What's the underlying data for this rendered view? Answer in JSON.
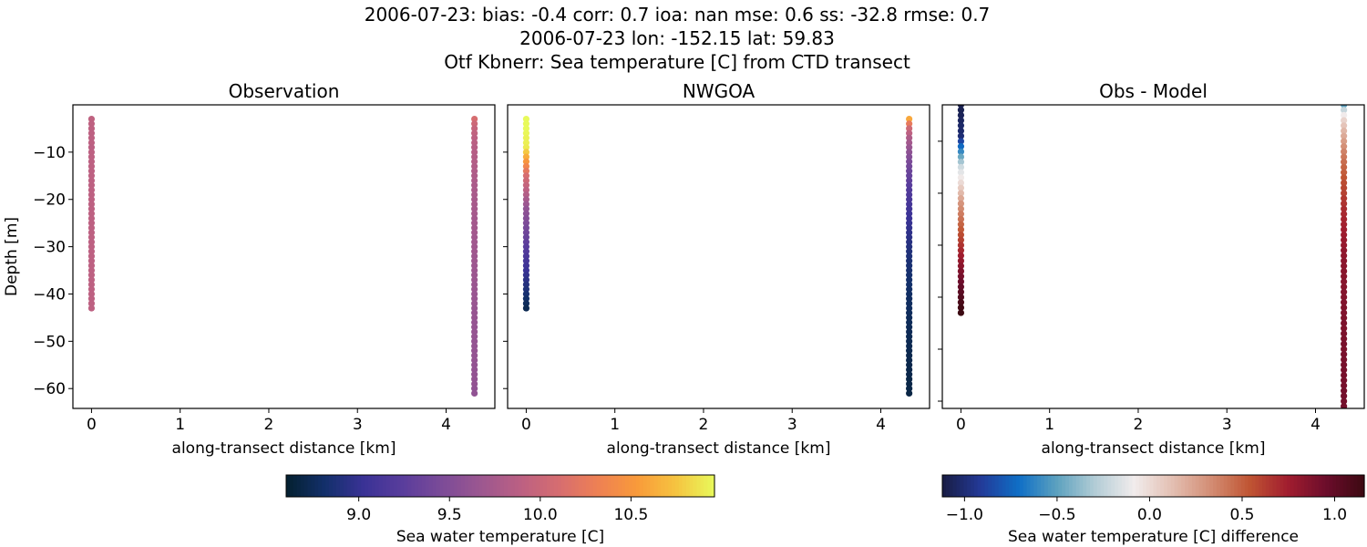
{
  "chart_data": {
    "suptitle": [
      "2006-07-23: bias: -0.4  corr: 0.7  ioa: nan  mse: 0.6  ss: -32.8  rmse: 0.7",
      "2006-07-23 lon: -152.15 lat: 59.83",
      "Otf Kbnerr: Sea temperature [C] from CTD transect"
    ],
    "type": "scatter",
    "profiles": [
      {
        "distance_km": 0,
        "depth_m": [
          -3,
          -4,
          -5,
          -6,
          -7,
          -8,
          -9,
          -10,
          -11,
          -12,
          -13,
          -14,
          -15,
          -16,
          -17,
          -18,
          -19,
          -20,
          -21,
          -22,
          -23,
          -24,
          -25,
          -26,
          -27,
          -28,
          -29,
          -30,
          -31,
          -32,
          -33,
          -34,
          -35,
          -36,
          -37,
          -38,
          -39,
          -40,
          -41,
          -42,
          -43
        ],
        "observation": [
          9.92,
          9.91,
          9.91,
          9.9,
          9.9,
          9.9,
          9.89,
          9.9,
          9.9,
          9.9,
          9.9,
          9.9,
          9.9,
          9.9,
          9.9,
          9.9,
          9.9,
          9.9,
          9.9,
          9.9,
          9.9,
          9.9,
          9.9,
          9.9,
          9.9,
          9.9,
          9.9,
          9.9,
          9.9,
          9.9,
          9.9,
          9.9,
          9.9,
          9.9,
          9.9,
          9.9,
          9.9,
          9.9,
          9.9,
          9.9,
          9.9
        ],
        "model": [
          11.0,
          10.98,
          10.97,
          10.95,
          10.93,
          10.92,
          10.9,
          10.77,
          10.63,
          10.5,
          10.37,
          10.23,
          10.1,
          10.03,
          9.97,
          9.9,
          9.83,
          9.75,
          9.68,
          9.6,
          9.56,
          9.51,
          9.47,
          9.42,
          9.38,
          9.33,
          9.29,
          9.24,
          9.2,
          9.15,
          9.11,
          9.07,
          9.03,
          8.99,
          8.95,
          8.91,
          8.88,
          8.84,
          8.8,
          8.76,
          8.72
        ],
        "difference": [
          -1.1,
          -1.08,
          -1.07,
          -1.05,
          -1.03,
          -1.02,
          -1.0,
          -0.87,
          -0.73,
          -0.6,
          -0.47,
          -0.33,
          -0.2,
          -0.13,
          -0.07,
          0.0,
          0.07,
          0.15,
          0.22,
          0.3,
          0.34,
          0.39,
          0.43,
          0.48,
          0.52,
          0.57,
          0.61,
          0.66,
          0.7,
          0.75,
          0.79,
          0.83,
          0.87,
          0.91,
          0.95,
          0.99,
          1.02,
          1.06,
          1.1,
          1.14,
          1.18
        ]
      },
      {
        "distance_km": 4.32,
        "depth_m": [
          -3,
          -4,
          -5,
          -6,
          -7,
          -8,
          -9,
          -10,
          -11,
          -12,
          -13,
          -14,
          -15,
          -16,
          -17,
          -18,
          -19,
          -20,
          -21,
          -22,
          -23,
          -24,
          -25,
          -26,
          -27,
          -28,
          -29,
          -30,
          -31,
          -32,
          -33,
          -34,
          -35,
          -36,
          -37,
          -38,
          -39,
          -40,
          -41,
          -42,
          -43,
          -44,
          -45,
          -46,
          -47,
          -48,
          -49,
          -50,
          -51,
          -52,
          -53,
          -54,
          -55,
          -56,
          -57,
          -58,
          -59,
          -60,
          -61
        ],
        "observation": [
          10.1,
          10.02,
          9.97,
          9.93,
          9.9,
          9.88,
          9.86,
          9.85,
          9.84,
          9.83,
          9.82,
          9.81,
          9.8,
          9.79,
          9.78,
          9.77,
          9.76,
          9.75,
          9.75,
          9.74,
          9.74,
          9.73,
          9.73,
          9.72,
          9.72,
          9.71,
          9.71,
          9.7,
          9.7,
          9.69,
          9.69,
          9.68,
          9.68,
          9.67,
          9.67,
          9.66,
          9.66,
          9.65,
          9.65,
          9.65,
          9.64,
          9.64,
          9.64,
          9.63,
          9.63,
          9.63,
          9.63,
          9.62,
          9.62,
          9.62,
          9.62,
          9.62,
          9.61,
          9.61,
          9.61,
          9.61,
          9.61,
          9.6,
          9.6
        ],
        "model": [
          10.6,
          10.25,
          10.05,
          9.9,
          9.8,
          9.72,
          9.65,
          9.58,
          9.52,
          9.46,
          9.41,
          9.36,
          9.32,
          9.28,
          9.24,
          9.2,
          9.17,
          9.14,
          9.11,
          9.08,
          9.05,
          9.03,
          9.01,
          8.99,
          8.97,
          8.95,
          8.93,
          8.91,
          8.89,
          8.88,
          8.86,
          8.85,
          8.84,
          8.83,
          8.82,
          8.81,
          8.8,
          8.79,
          8.78,
          8.77,
          8.77,
          8.76,
          8.75,
          8.75,
          8.74,
          8.74,
          8.73,
          8.73,
          8.72,
          8.72,
          8.71,
          8.71,
          8.7,
          8.7,
          8.7,
          8.69,
          8.69,
          8.69,
          8.68
        ],
        "difference": [
          -0.5,
          -0.23,
          -0.08,
          0.03,
          0.1,
          0.16,
          0.21,
          0.27,
          0.32,
          0.37,
          0.41,
          0.45,
          0.48,
          0.51,
          0.54,
          0.57,
          0.59,
          0.61,
          0.64,
          0.66,
          0.69,
          0.7,
          0.72,
          0.73,
          0.75,
          0.76,
          0.78,
          0.79,
          0.81,
          0.81,
          0.83,
          0.83,
          0.84,
          0.84,
          0.85,
          0.85,
          0.86,
          0.86,
          0.87,
          0.88,
          0.87,
          0.88,
          0.89,
          0.88,
          0.89,
          0.89,
          0.9,
          0.89,
          0.9,
          0.9,
          0.91,
          0.91,
          0.91,
          0.91,
          0.91,
          0.92,
          0.92,
          0.92,
          0.92
        ]
      }
    ],
    "panels": [
      {
        "title": "Observation",
        "key": "observation",
        "cmap": "thermal",
        "xlabel": "along-transect distance [km]",
        "ylabel": "Depth [m]",
        "xlim": [
          -0.21,
          4.55
        ],
        "ylim": [
          -64.2,
          0
        ],
        "xticks": [
          "0",
          "1",
          "2",
          "3",
          "4"
        ],
        "yticks": [
          "−10",
          "−20",
          "−30",
          "−40",
          "−50",
          "−60"
        ]
      },
      {
        "title": "NWGOA",
        "key": "model",
        "cmap": "thermal",
        "xlabel": "along-transect distance [km]",
        "ylabel": "",
        "xlim": [
          -0.21,
          4.55
        ],
        "ylim": [
          -64.2,
          0
        ],
        "xticks": [
          "0",
          "1",
          "2",
          "3",
          "4"
        ],
        "yticks": []
      },
      {
        "title": "Obs - Model",
        "key": "difference",
        "cmap": "balance",
        "xlabel": "along-transect distance [km]",
        "ylabel": "",
        "xlim": [
          -0.21,
          4.55
        ],
        "ylim": [
          -61.4,
          -3.0
        ],
        "xticks": [
          "0",
          "1",
          "2",
          "3",
          "4"
        ],
        "yticks": []
      }
    ],
    "colorbars": [
      {
        "label": "Sea water temperature [C]",
        "cmap": "thermal",
        "range": [
          8.6,
          10.96
        ],
        "ticks": [
          9.0,
          9.5,
          10.0,
          10.5
        ],
        "tick_labels": [
          "9.0",
          "9.5",
          "10.0",
          "10.5"
        ]
      },
      {
        "label": "Sea water temperature [C] difference",
        "cmap": "balance",
        "range": [
          -1.12,
          1.16
        ],
        "ticks": [
          -1.0,
          -0.5,
          0.0,
          0.5,
          1.0
        ],
        "tick_labels": [
          "−1.0",
          "−0.5",
          "0.0",
          "0.5",
          "1.0"
        ]
      }
    ],
    "colormaps": {
      "thermal": [
        "#04202f",
        "#13306b",
        "#3a3296",
        "#5a3d9c",
        "#7c4b98",
        "#9c5790",
        "#bb6083",
        "#d66d70",
        "#ee8054",
        "#f99a3a",
        "#f6c340",
        "#e8fa5b"
      ],
      "balance": [
        "#181c43",
        "#233a98",
        "#0f6fc6",
        "#5ea2bf",
        "#b4cdd6",
        "#f1ecec",
        "#e3bfb2",
        "#d38d74",
        "#c05533",
        "#a11d2f",
        "#6c0d2b",
        "#3c0912"
      ]
    }
  }
}
